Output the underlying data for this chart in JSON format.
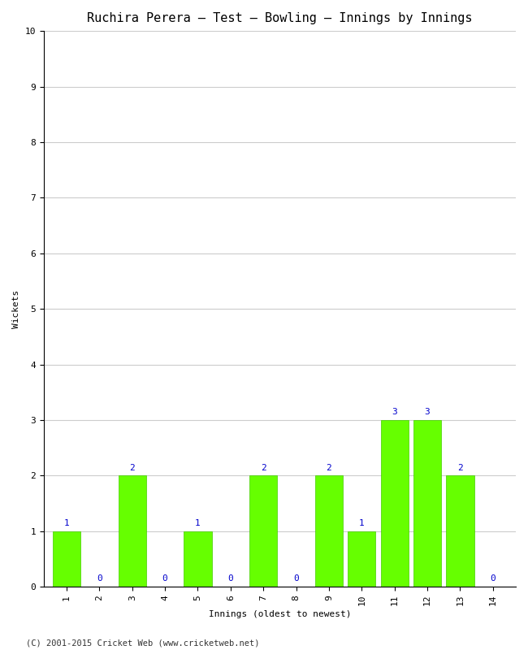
{
  "title": "Ruchira Perera – Test – Bowling – Innings by Innings",
  "xlabel": "Innings (oldest to newest)",
  "ylabel": "Wickets",
  "categories": [
    "1",
    "2",
    "3",
    "4",
    "5",
    "6",
    "7",
    "8",
    "9",
    "10",
    "11",
    "12",
    "13",
    "14"
  ],
  "values": [
    1,
    0,
    2,
    0,
    1,
    0,
    2,
    0,
    2,
    1,
    3,
    3,
    2,
    0
  ],
  "bar_color": "#66ff00",
  "bar_edge_color": "#44cc00",
  "label_color": "#0000cc",
  "ylim": [
    0,
    10
  ],
  "yticks": [
    0,
    1,
    2,
    3,
    4,
    5,
    6,
    7,
    8,
    9,
    10
  ],
  "background_color": "#ffffff",
  "grid_color": "#cccccc",
  "footer": "(C) 2001-2015 Cricket Web (www.cricketweb.net)",
  "title_fontsize": 11,
  "axis_label_fontsize": 8,
  "tick_fontsize": 8,
  "label_fontsize": 8,
  "footer_fontsize": 7.5
}
